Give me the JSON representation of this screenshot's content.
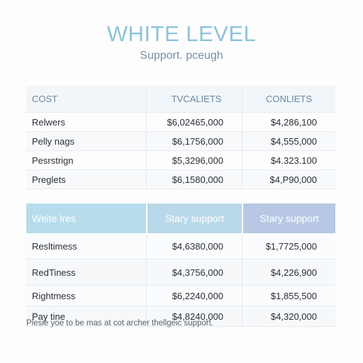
{
  "header": {
    "title": "WHITE LEVEL",
    "subtitle": "Support. pceugh"
  },
  "table1": {
    "columns": [
      "COST",
      "TVCALIETS",
      "CONLIETS"
    ],
    "rows": [
      [
        "Relwers",
        "$6,02465,000",
        "$4,286,100"
      ],
      [
        "Pelly nags",
        "$6,1756,000",
        "$4,555,000"
      ],
      [
        "Pesrstrign",
        "$5,3296,000",
        "$4.323.100"
      ],
      [
        "Preglets",
        "$6,1580,000",
        "$4,P90,000"
      ]
    ]
  },
  "table2": {
    "columns": [
      "Weite lres",
      "Stary support",
      "Stary support"
    ],
    "rows": [
      [
        "Resltimess",
        "$4,6380,000",
        "$1,7725,000"
      ],
      [
        "RedTiness",
        "$4,3756,000",
        "$4,226,900"
      ],
      [
        "Rightmess",
        "$6,2240,000",
        "$1,855,500"
      ],
      [
        "Pay tine",
        "$4,8240,000",
        "$4,320,000"
      ]
    ]
  },
  "footer": {
    "note": "Plesie yoe to be mas at cot archer thellgeic support."
  },
  "colors": {
    "title": "#8ec3d9",
    "header_blue_1": "#b7dcec",
    "header_blue_2": "#b9d9ea",
    "header_lavender": "#b8c8e4"
  }
}
